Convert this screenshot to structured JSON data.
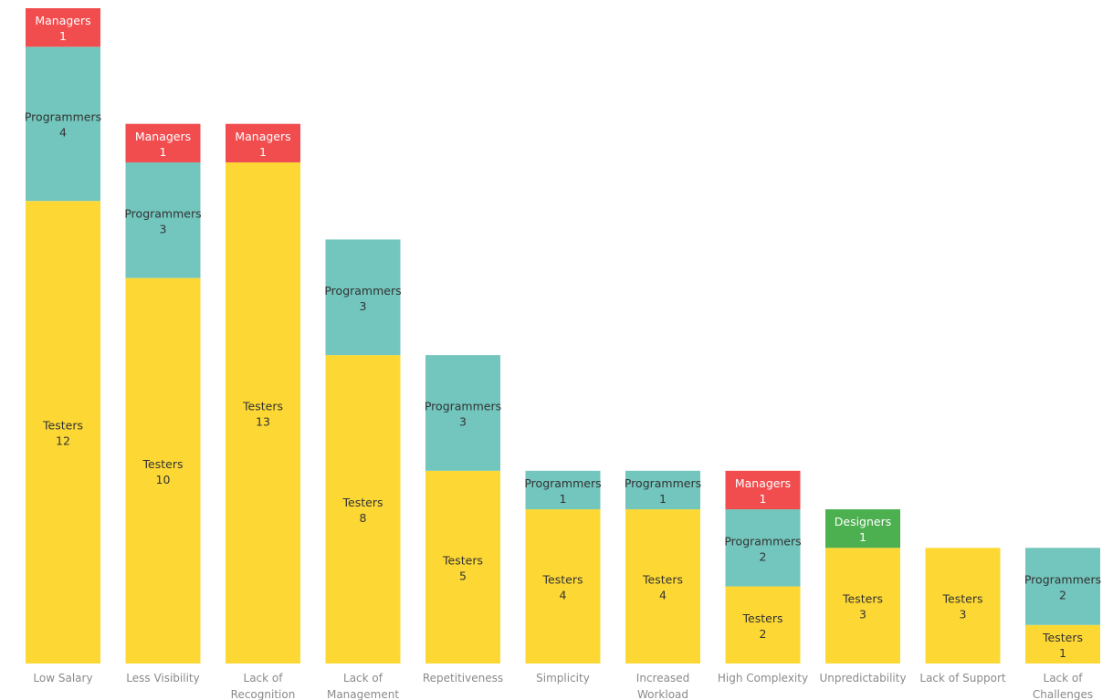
{
  "chart_data": {
    "type": "bar",
    "stacked": true,
    "grid": false,
    "legend": "none",
    "categories": [
      [
        "Low Salary"
      ],
      [
        "Less Visibility"
      ],
      [
        "Lack of",
        "Recognition"
      ],
      [
        "Lack of",
        "Management"
      ],
      [
        "Repetitiveness"
      ],
      [
        "Simplicity"
      ],
      [
        "Increased",
        "Workload"
      ],
      [
        "High Complexity"
      ],
      [
        "Unpredictability"
      ],
      [
        "Lack of Support"
      ],
      [
        "Lack of",
        "Challenges"
      ]
    ],
    "series": [
      {
        "name": "Testers",
        "color": "#fdd835",
        "text_color": "#333333",
        "values": [
          12,
          10,
          13,
          8,
          5,
          4,
          4,
          2,
          3,
          3,
          1
        ]
      },
      {
        "name": "Designers",
        "color": "#4caf50",
        "text_color": "#ffffff",
        "values": [
          0,
          0,
          0,
          0,
          0,
          0,
          0,
          0,
          1,
          0,
          0
        ]
      },
      {
        "name": "Programmers",
        "color": "#72c6bd",
        "text_color": "#333333",
        "values": [
          4,
          3,
          0,
          3,
          3,
          1,
          1,
          2,
          0,
          0,
          2
        ]
      },
      {
        "name": "Managers",
        "color": "#f14d4f",
        "text_color": "#ffffff",
        "values": [
          1,
          1,
          1,
          0,
          0,
          0,
          0,
          1,
          0,
          0,
          0
        ]
      }
    ],
    "ylim": [
      0,
      17
    ],
    "title": "",
    "xlabel": "",
    "ylabel": ""
  }
}
